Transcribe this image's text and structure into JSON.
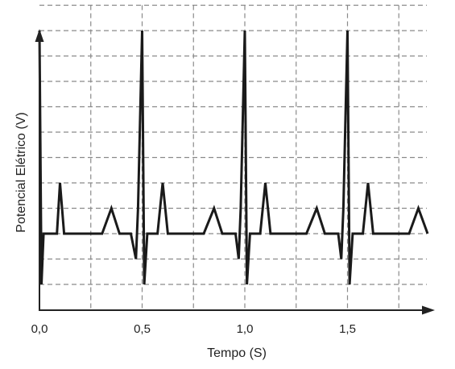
{
  "chart_data": {
    "type": "line",
    "title": "",
    "xlabel": "Tempo (S)",
    "ylabel": "Potencial Elétrico (V)",
    "xlim": [
      0,
      1.9
    ],
    "ylim": [
      0,
      10.5
    ],
    "x_ticks": [
      0,
      0.5,
      1.0,
      1.5
    ],
    "x_tick_labels": [
      "0,0",
      "0,5",
      "1,0",
      "1,5"
    ],
    "x_grid": [
      0.25,
      0.5,
      0.75,
      1.0,
      1.25,
      1.5,
      1.75
    ],
    "y_grid": [
      1,
      2,
      3,
      4,
      5,
      6,
      7,
      8,
      9,
      10,
      11
    ],
    "grid": true,
    "line_color": "#1a1a1a",
    "grid_color": "#8a8a8a",
    "series": [
      {
        "x": [
          0,
          0.01,
          0.02,
          0.045,
          0.055,
          0.085,
          0.1,
          0.12,
          0.14,
          0.16,
          0.305,
          0.35,
          0.39,
          0.445,
          0.47,
          0.48,
          0.5,
          0.51,
          0.525,
          0.535,
          0.555,
          0.575,
          0.6,
          0.625,
          0.64,
          0.66,
          0.8,
          0.85,
          0.89,
          0.955,
          0.97,
          0.98,
          1.0,
          1.01,
          1.025,
          1.035,
          1.055,
          1.075,
          1.1,
          1.125,
          1.14,
          1.16,
          1.3,
          1.35,
          1.39,
          1.455,
          1.47,
          1.48,
          1.5,
          1.51,
          1.525,
          1.535,
          1.555,
          1.575,
          1.6,
          1.625,
          1.64,
          1.66,
          1.8,
          1.845,
          1.89
        ],
        "y": [
          10,
          0,
          2,
          2,
          2,
          2,
          4,
          2,
          2,
          2,
          2,
          3,
          2,
          2,
          1,
          3,
          10,
          0,
          2,
          2,
          2,
          2,
          4,
          2,
          2,
          2,
          2,
          3,
          2,
          2,
          1,
          3,
          10,
          0,
          2,
          2,
          2,
          2,
          4,
          2,
          2,
          2,
          2,
          3,
          2,
          2,
          1,
          3,
          10,
          0,
          2,
          2,
          2,
          2,
          4,
          2,
          2,
          2,
          2,
          3,
          2
        ]
      }
    ]
  }
}
